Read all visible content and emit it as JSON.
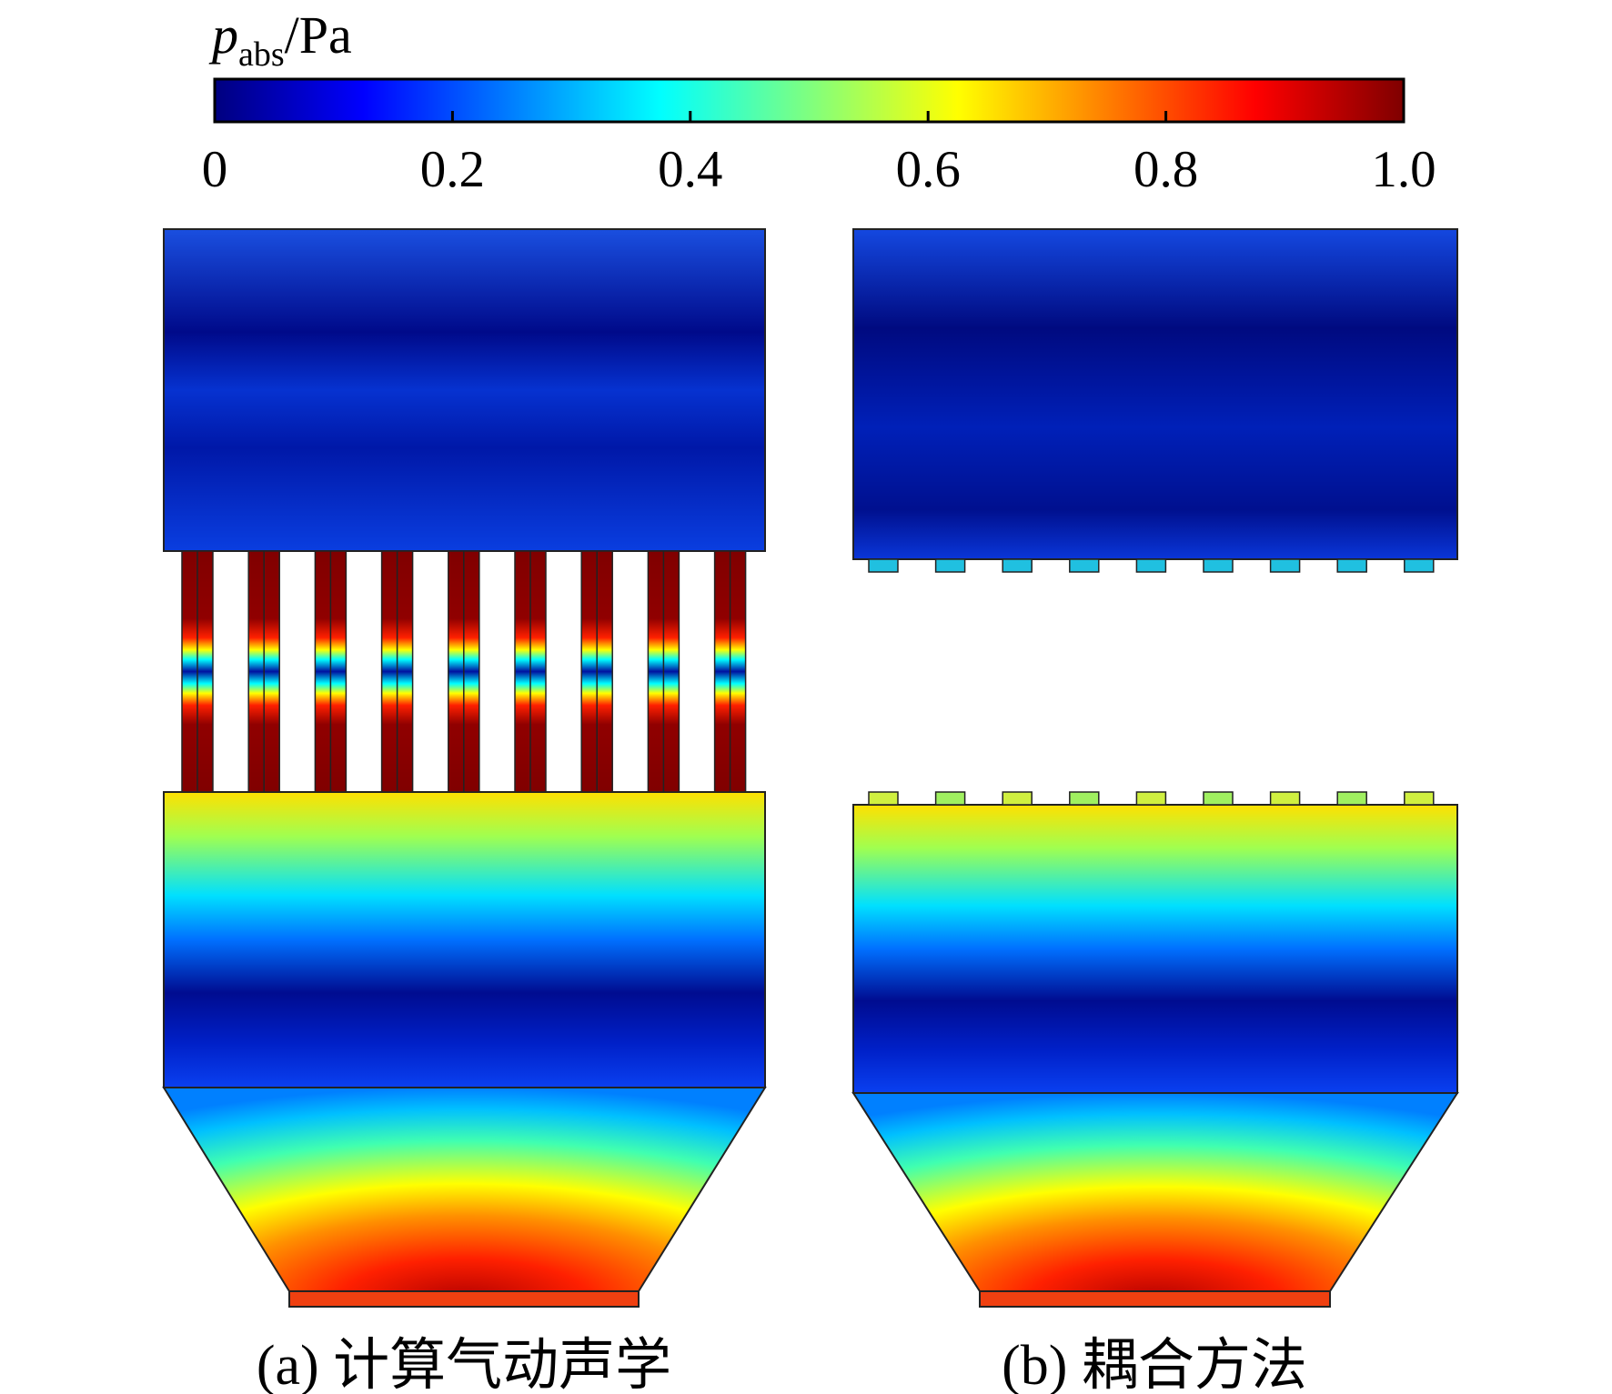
{
  "colorbar": {
    "symbol": "p",
    "subscript": "abs",
    "unit": "/Pa",
    "lim": [
      0,
      1
    ],
    "ticks": [
      0,
      0.2,
      0.4,
      0.6,
      0.8,
      {
        "value": 1,
        "label": "1.0"
      }
    ],
    "colormap": [
      "#00007f",
      "#0000ff",
      "#007fff",
      "#00ffff",
      "#7fff7f",
      "#ffff00",
      "#ff7f00",
      "#ff0000",
      "#7f0000"
    ]
  },
  "panels": [
    {
      "caption": "(a) 计算气动声学"
    },
    {
      "caption": "(b) 耦合方法"
    }
  ]
}
